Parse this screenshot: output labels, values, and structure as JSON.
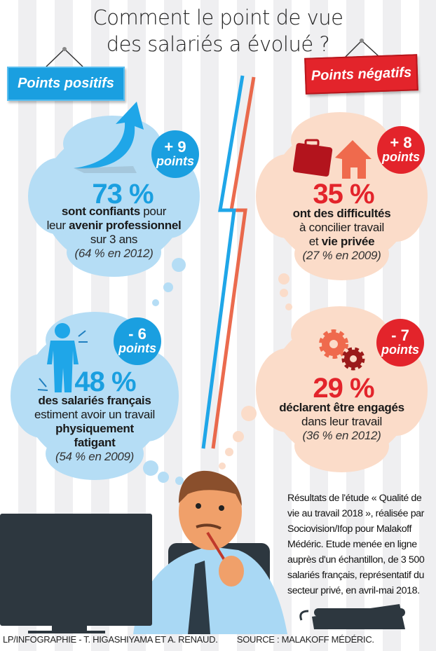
{
  "title": {
    "line1": "Comment le point de vue",
    "line2": "des salariés a évolué ?"
  },
  "signs": {
    "positive": "Points positifs",
    "negative": "Points négatifs"
  },
  "colors": {
    "blue": "#1a9fe0",
    "red": "#e3242b",
    "cloud_blue": "#b5ddf5",
    "cloud_red": "#fbdcc9"
  },
  "stats": [
    {
      "badge_value": "+ 9",
      "badge_unit": "points",
      "percent": "73 %",
      "lines": [
        [
          "sont confiants",
          " pour"
        ],
        [
          "leur ",
          "avenir professionnel"
        ],
        [
          "sur 3 ans"
        ]
      ],
      "previous": "(64 % en 2012)",
      "icon": "arrow-up-icon"
    },
    {
      "badge_value": "+ 8",
      "badge_unit": "points",
      "percent": "35 %",
      "lines": [
        "ont des difficultés",
        "à concilier  travail",
        [
          "et ",
          "vie privée"
        ]
      ],
      "previous": "(27 % en 2009)",
      "icon": "briefcase-house-icon"
    },
    {
      "badge_value": "- 6",
      "badge_unit": "points",
      "percent": "48 %",
      "lines": [
        "des salariés français",
        "estiment avoir un travail",
        "physiquement",
        "fatigant"
      ],
      "previous": "(54 % en 2009)",
      "icon": "tired-person-icon"
    },
    {
      "badge_value": "- 7",
      "badge_unit": "points",
      "percent": "29 %",
      "lines": [
        "déclarent être engagés",
        "dans leur travail"
      ],
      "previous": "(36 % en 2012)",
      "icon": "gears-icon"
    }
  ],
  "note": "Résultats de l'étude « Qualité de vie au travail 2018 », réalisée par Sociovision/Ifop pour Malakoff Médéric. Etude menée en ligne auprès d'un échantillon, de 3 500 salariés français, représentatif du secteur privé, en avril-mai 2018.",
  "footer": {
    "credit": "LP/INFOGRAPHIE - T. HIGASHIYAMA ET A. RENAUD.",
    "source": "SOURCE : MALAKOFF MÉDÉRIC."
  }
}
